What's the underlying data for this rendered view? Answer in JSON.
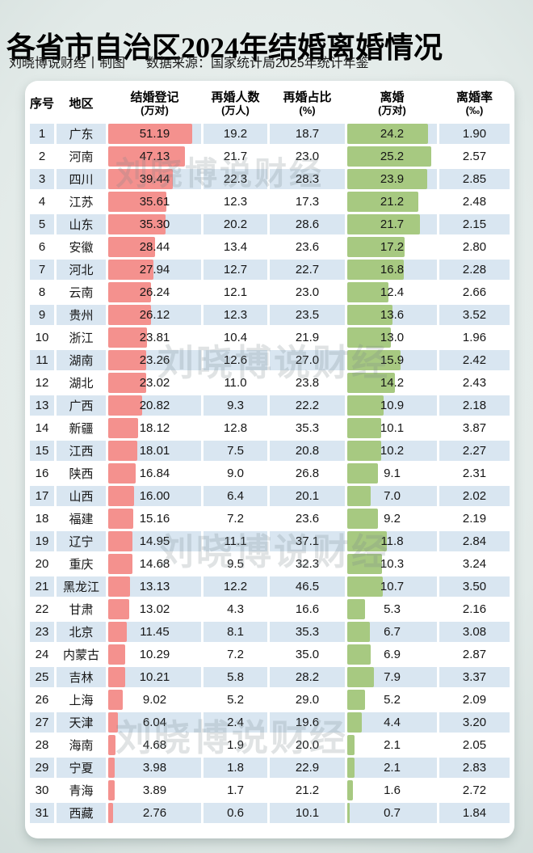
{
  "title": "各省市自治区2024年结婚离婚情况",
  "subtitle": {
    "author": "刘晓博说财经丨制图",
    "source": "数据来源：国家统计局2025年统计年鉴"
  },
  "watermark": {
    "text": "刘晓博说财经"
  },
  "colors": {
    "marriage_bar": "#f4918e",
    "divorce_bar": "#a7c981",
    "row_stripe": "#d9e6f1",
    "card_background": "#ffffff",
    "title_text": "#000000"
  },
  "chart_data": {
    "type": "table",
    "title": "各省市自治区2024年结婚离婚情况",
    "header": [
      {
        "label": "序号",
        "unit": ""
      },
      {
        "label": "地区",
        "unit": ""
      },
      {
        "label": "结婚登记",
        "unit": "(万对)"
      },
      {
        "label": "再婚人数",
        "unit": "(万人)"
      },
      {
        "label": "再婚占比",
        "unit": "(%)"
      },
      {
        "label": "离婚",
        "unit": "(万对)"
      },
      {
        "label": "离婚率",
        "unit": "(‰)"
      }
    ],
    "bar_scales": {
      "marriage_max": 51.19,
      "marriage_fill_pct": 90,
      "divorce_max": 25.2,
      "divorce_fill_pct": 94
    },
    "rows": [
      {
        "seq": "1",
        "region": "广东",
        "marriage": "51.19",
        "remarriage": "19.2",
        "remarriage_pct": "18.7",
        "divorce": "24.2",
        "divorce_rate": "1.90"
      },
      {
        "seq": "2",
        "region": "河南",
        "marriage": "47.13",
        "remarriage": "21.7",
        "remarriage_pct": "23.0",
        "divorce": "25.2",
        "divorce_rate": "2.57"
      },
      {
        "seq": "3",
        "region": "四川",
        "marriage": "39.44",
        "remarriage": "22.3",
        "remarriage_pct": "28.3",
        "divorce": "23.9",
        "divorce_rate": "2.85"
      },
      {
        "seq": "4",
        "region": "江苏",
        "marriage": "35.61",
        "remarriage": "12.3",
        "remarriage_pct": "17.3",
        "divorce": "21.2",
        "divorce_rate": "2.48"
      },
      {
        "seq": "5",
        "region": "山东",
        "marriage": "35.30",
        "remarriage": "20.2",
        "remarriage_pct": "28.6",
        "divorce": "21.7",
        "divorce_rate": "2.15"
      },
      {
        "seq": "6",
        "region": "安徽",
        "marriage": "28.44",
        "remarriage": "13.4",
        "remarriage_pct": "23.6",
        "divorce": "17.2",
        "divorce_rate": "2.80"
      },
      {
        "seq": "7",
        "region": "河北",
        "marriage": "27.94",
        "remarriage": "12.7",
        "remarriage_pct": "22.7",
        "divorce": "16.8",
        "divorce_rate": "2.28"
      },
      {
        "seq": "8",
        "region": "云南",
        "marriage": "26.24",
        "remarriage": "12.1",
        "remarriage_pct": "23.0",
        "divorce": "12.4",
        "divorce_rate": "2.66"
      },
      {
        "seq": "9",
        "region": "贵州",
        "marriage": "26.12",
        "remarriage": "12.3",
        "remarriage_pct": "23.5",
        "divorce": "13.6",
        "divorce_rate": "3.52"
      },
      {
        "seq": "10",
        "region": "浙江",
        "marriage": "23.81",
        "remarriage": "10.4",
        "remarriage_pct": "21.9",
        "divorce": "13.0",
        "divorce_rate": "1.96"
      },
      {
        "seq": "11",
        "region": "湖南",
        "marriage": "23.26",
        "remarriage": "12.6",
        "remarriage_pct": "27.0",
        "divorce": "15.9",
        "divorce_rate": "2.42"
      },
      {
        "seq": "12",
        "region": "湖北",
        "marriage": "23.02",
        "remarriage": "11.0",
        "remarriage_pct": "23.8",
        "divorce": "14.2",
        "divorce_rate": "2.43"
      },
      {
        "seq": "13",
        "region": "广西",
        "marriage": "20.82",
        "remarriage": "9.3",
        "remarriage_pct": "22.2",
        "divorce": "10.9",
        "divorce_rate": "2.18"
      },
      {
        "seq": "14",
        "region": "新疆",
        "marriage": "18.12",
        "remarriage": "12.8",
        "remarriage_pct": "35.3",
        "divorce": "10.1",
        "divorce_rate": "3.87"
      },
      {
        "seq": "15",
        "region": "江西",
        "marriage": "18.01",
        "remarriage": "7.5",
        "remarriage_pct": "20.8",
        "divorce": "10.2",
        "divorce_rate": "2.27"
      },
      {
        "seq": "16",
        "region": "陕西",
        "marriage": "16.84",
        "remarriage": "9.0",
        "remarriage_pct": "26.8",
        "divorce": "9.1",
        "divorce_rate": "2.31"
      },
      {
        "seq": "17",
        "region": "山西",
        "marriage": "16.00",
        "remarriage": "6.4",
        "remarriage_pct": "20.1",
        "divorce": "7.0",
        "divorce_rate": "2.02"
      },
      {
        "seq": "18",
        "region": "福建",
        "marriage": "15.16",
        "remarriage": "7.2",
        "remarriage_pct": "23.6",
        "divorce": "9.2",
        "divorce_rate": "2.19"
      },
      {
        "seq": "19",
        "region": "辽宁",
        "marriage": "14.95",
        "remarriage": "11.1",
        "remarriage_pct": "37.1",
        "divorce": "11.8",
        "divorce_rate": "2.84"
      },
      {
        "seq": "20",
        "region": "重庆",
        "marriage": "14.68",
        "remarriage": "9.5",
        "remarriage_pct": "32.3",
        "divorce": "10.3",
        "divorce_rate": "3.24"
      },
      {
        "seq": "21",
        "region": "黑龙江",
        "marriage": "13.13",
        "remarriage": "12.2",
        "remarriage_pct": "46.5",
        "divorce": "10.7",
        "divorce_rate": "3.50"
      },
      {
        "seq": "22",
        "region": "甘肃",
        "marriage": "13.02",
        "remarriage": "4.3",
        "remarriage_pct": "16.6",
        "divorce": "5.3",
        "divorce_rate": "2.16"
      },
      {
        "seq": "23",
        "region": "北京",
        "marriage": "11.45",
        "remarriage": "8.1",
        "remarriage_pct": "35.3",
        "divorce": "6.7",
        "divorce_rate": "3.08"
      },
      {
        "seq": "24",
        "region": "内蒙古",
        "marriage": "10.29",
        "remarriage": "7.2",
        "remarriage_pct": "35.0",
        "divorce": "6.9",
        "divorce_rate": "2.87"
      },
      {
        "seq": "25",
        "region": "吉林",
        "marriage": "10.21",
        "remarriage": "5.8",
        "remarriage_pct": "28.2",
        "divorce": "7.9",
        "divorce_rate": "3.37"
      },
      {
        "seq": "26",
        "region": "上海",
        "marriage": "9.02",
        "remarriage": "5.2",
        "remarriage_pct": "29.0",
        "divorce": "5.2",
        "divorce_rate": "2.09"
      },
      {
        "seq": "27",
        "region": "天津",
        "marriage": "6.04",
        "remarriage": "2.4",
        "remarriage_pct": "19.6",
        "divorce": "4.4",
        "divorce_rate": "3.20"
      },
      {
        "seq": "28",
        "region": "海南",
        "marriage": "4.68",
        "remarriage": "1.9",
        "remarriage_pct": "20.0",
        "divorce": "2.1",
        "divorce_rate": "2.05"
      },
      {
        "seq": "29",
        "region": "宁夏",
        "marriage": "3.98",
        "remarriage": "1.8",
        "remarriage_pct": "22.9",
        "divorce": "2.1",
        "divorce_rate": "2.83"
      },
      {
        "seq": "30",
        "region": "青海",
        "marriage": "3.89",
        "remarriage": "1.7",
        "remarriage_pct": "21.2",
        "divorce": "1.6",
        "divorce_rate": "2.72"
      },
      {
        "seq": "31",
        "region": "西藏",
        "marriage": "2.76",
        "remarriage": "0.6",
        "remarriage_pct": "10.1",
        "divorce": "0.7",
        "divorce_rate": "1.84"
      }
    ]
  }
}
